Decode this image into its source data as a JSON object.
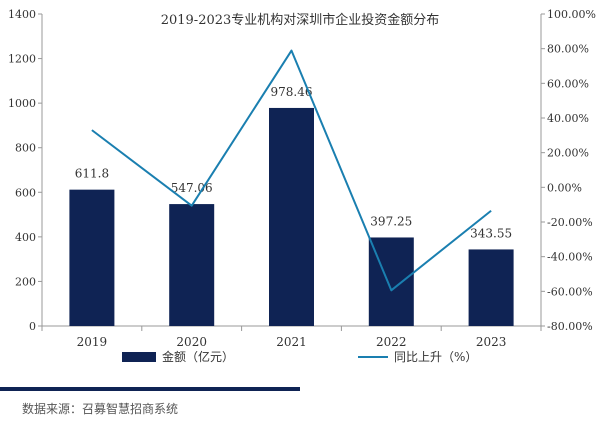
{
  "chart_data": {
    "type": "bar",
    "title": "2019-2023专业机构对深圳市企业投资金额分布",
    "categories": [
      "2019",
      "2020",
      "2021",
      "2022",
      "2023"
    ],
    "series": [
      {
        "name": "金额（亿元）",
        "type": "bar",
        "axis": "left",
        "values": [
          611.8,
          547.06,
          978.46,
          397.25,
          343.55
        ],
        "labels": [
          "611.8",
          "547.06",
          "978.46",
          "397.25",
          "343.55"
        ]
      },
      {
        "name": "同比上升（%）",
        "type": "line",
        "axis": "right",
        "values": [
          33.0,
          -10.6,
          78.9,
          -59.4,
          -13.5
        ]
      }
    ],
    "y_left": {
      "min": 0,
      "max": 1400,
      "ticks": [
        "0",
        "200",
        "400",
        "600",
        "800",
        "1000",
        "1200",
        "1400"
      ]
    },
    "y_right": {
      "min": -80,
      "max": 100,
      "ticks": [
        "-80.00%",
        "-60.00%",
        "-40.00%",
        "-20.00%",
        "0.00%",
        "20.00%",
        "40.00%",
        "60.00%",
        "80.00%",
        "100.00%"
      ]
    },
    "legend_position": "bottom",
    "grid": false
  },
  "source": "数据来源：召募智慧招商系统",
  "colors": {
    "bar": "#0f2354",
    "line": "#1a7fb0",
    "axis": "#999999",
    "text": "#333333",
    "divider": "#0f2354"
  }
}
